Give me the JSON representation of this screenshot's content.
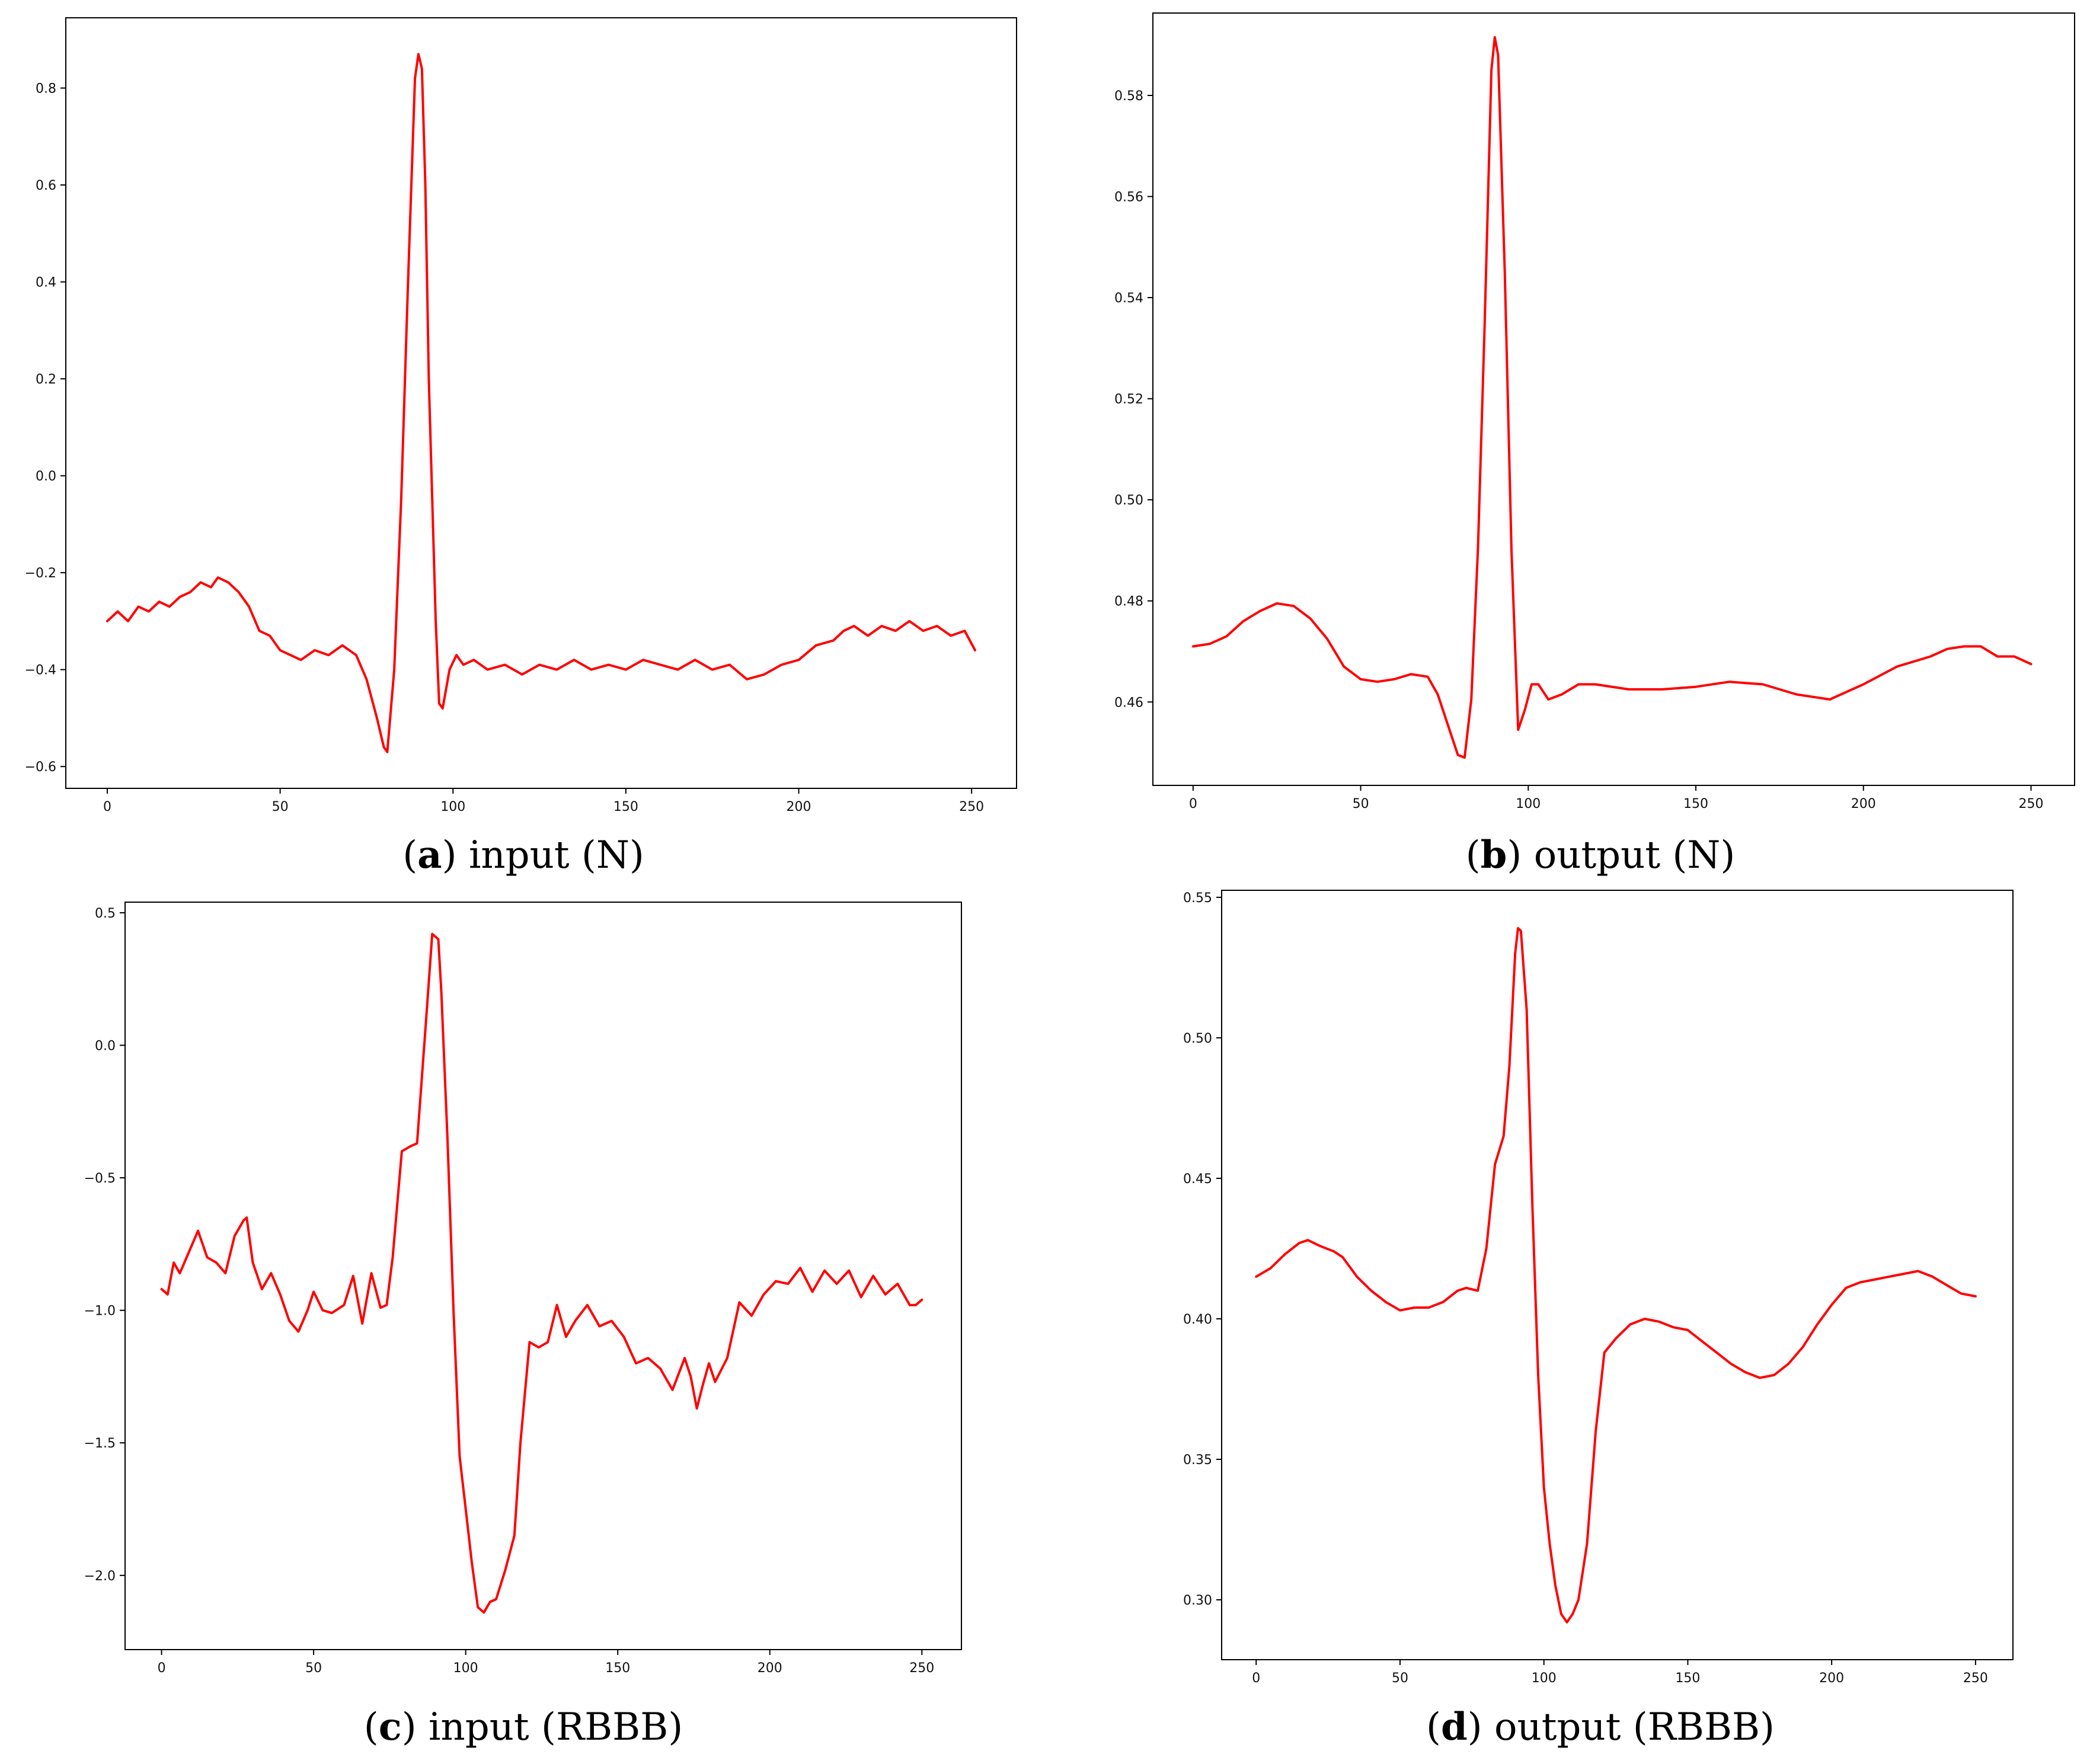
{
  "colors": {
    "line": "#ff0000",
    "axes": "#000000",
    "background": "#ffffff"
  },
  "chart_data": [
    {
      "type": "line",
      "caption_letter": "a",
      "caption_text": "input (N)",
      "xlim": [
        -12,
        263
      ],
      "ylim": [
        -0.645,
        0.945
      ],
      "xticks": [
        0,
        50,
        100,
        150,
        200,
        250
      ],
      "xtick_labels": [
        "0",
        "50",
        "100",
        "150",
        "200",
        "250"
      ],
      "yticks": [
        -0.6,
        -0.4,
        -0.2,
        0.0,
        0.2,
        0.4,
        0.6,
        0.8
      ],
      "ytick_labels": [
        "−0.6",
        "−0.4",
        "−0.2",
        "0.0",
        "0.2",
        "0.4",
        "0.6",
        "0.8"
      ],
      "series": [
        {
          "x": [
            0,
            3,
            6,
            9,
            12,
            15,
            18,
            21,
            24,
            27,
            30,
            32,
            35,
            38,
            41,
            44,
            47,
            50,
            53,
            56,
            60,
            64,
            68,
            70,
            72,
            75,
            78,
            80,
            81,
            83,
            85,
            87,
            89,
            90,
            91,
            92,
            93,
            95,
            96,
            97,
            99,
            101,
            103,
            106,
            110,
            115,
            120,
            125,
            130,
            135,
            140,
            145,
            150,
            155,
            160,
            165,
            170,
            175,
            180,
            185,
            190,
            195,
            200,
            205,
            210,
            213,
            216,
            220,
            224,
            228,
            232,
            236,
            240,
            244,
            248,
            251
          ],
          "values": [
            -0.3,
            -0.28,
            -0.3,
            -0.27,
            -0.28,
            -0.26,
            -0.27,
            -0.25,
            -0.24,
            -0.22,
            -0.23,
            -0.21,
            -0.22,
            -0.24,
            -0.27,
            -0.32,
            -0.33,
            -0.36,
            -0.37,
            -0.38,
            -0.36,
            -0.37,
            -0.35,
            -0.36,
            -0.37,
            -0.42,
            -0.5,
            -0.56,
            -0.57,
            -0.4,
            -0.05,
            0.4,
            0.82,
            0.87,
            0.84,
            0.6,
            0.2,
            -0.3,
            -0.47,
            -0.48,
            -0.4,
            -0.37,
            -0.39,
            -0.38,
            -0.4,
            -0.39,
            -0.41,
            -0.39,
            -0.4,
            -0.38,
            -0.4,
            -0.39,
            -0.4,
            -0.38,
            -0.39,
            -0.4,
            -0.38,
            -0.4,
            -0.39,
            -0.42,
            -0.41,
            -0.39,
            -0.38,
            -0.35,
            -0.34,
            -0.32,
            -0.31,
            -0.33,
            -0.31,
            -0.32,
            -0.3,
            -0.32,
            -0.31,
            -0.33,
            -0.32,
            -0.36
          ]
        }
      ]
    },
    {
      "type": "line",
      "caption_letter": "b",
      "caption_text": "output (N)",
      "xlim": [
        -12,
        263
      ],
      "ylim": [
        0.4435,
        0.5963
      ],
      "xticks": [
        0,
        50,
        100,
        150,
        200,
        250
      ],
      "xtick_labels": [
        "0",
        "50",
        "100",
        "150",
        "200",
        "250"
      ],
      "yticks": [
        0.46,
        0.48,
        0.5,
        0.52,
        0.54,
        0.56,
        0.58
      ],
      "ytick_labels": [
        "0.46",
        "0.48",
        "0.50",
        "0.52",
        "0.54",
        "0.56",
        "0.58"
      ],
      "series": [
        {
          "x": [
            0,
            5,
            10,
            15,
            20,
            25,
            30,
            35,
            40,
            45,
            50,
            55,
            60,
            65,
            70,
            73,
            76,
            79,
            81,
            83,
            85,
            87,
            89,
            90,
            91,
            93,
            95,
            97,
            99,
            101,
            103,
            106,
            110,
            115,
            120,
            130,
            140,
            150,
            160,
            170,
            180,
            190,
            195,
            200,
            210,
            220,
            225,
            230,
            235,
            240,
            245,
            250
          ],
          "values": [
            0.471,
            0.4715,
            0.473,
            0.476,
            0.478,
            0.4795,
            0.479,
            0.4765,
            0.4725,
            0.467,
            0.4645,
            0.464,
            0.4645,
            0.4655,
            0.465,
            0.4615,
            0.4555,
            0.4495,
            0.449,
            0.4605,
            0.4905,
            0.535,
            0.585,
            0.5915,
            0.588,
            0.545,
            0.49,
            0.4545,
            0.4585,
            0.4635,
            0.4635,
            0.4605,
            0.4615,
            0.4635,
            0.4635,
            0.4625,
            0.4625,
            0.463,
            0.464,
            0.4635,
            0.4615,
            0.4605,
            0.462,
            0.4635,
            0.467,
            0.469,
            0.4705,
            0.471,
            0.471,
            0.469,
            0.469,
            0.4675
          ]
        }
      ]
    },
    {
      "type": "line",
      "caption_letter": "c",
      "caption_text": "input (RBBB)",
      "xlim": [
        -12,
        263
      ],
      "ylim": [
        -2.28,
        0.54
      ],
      "xticks": [
        0,
        50,
        100,
        150,
        200,
        250
      ],
      "xtick_labels": [
        "0",
        "50",
        "100",
        "150",
        "200",
        "250"
      ],
      "yticks": [
        -2.0,
        -1.5,
        -1.0,
        -0.5,
        0.0,
        0.5
      ],
      "ytick_labels": [
        "−2.0",
        "−1.5",
        "−1.0",
        "−0.5",
        "0.0",
        "0.5"
      ],
      "series": [
        {
          "x": [
            0,
            2,
            4,
            6,
            9,
            12,
            15,
            18,
            21,
            24,
            27,
            28,
            30,
            33,
            36,
            39,
            42,
            45,
            48,
            50,
            53,
            56,
            60,
            63,
            66,
            69,
            72,
            74,
            76,
            79,
            82,
            84,
            87,
            89,
            91,
            92,
            94,
            96,
            98,
            100,
            102,
            104,
            106,
            108,
            110,
            113,
            116,
            118,
            121,
            124,
            127,
            130,
            133,
            136,
            140,
            144,
            148,
            152,
            156,
            160,
            164,
            168,
            172,
            174,
            176,
            178,
            180,
            182,
            186,
            190,
            194,
            198,
            202,
            206,
            210,
            214,
            218,
            222,
            226,
            230,
            234,
            238,
            242,
            246,
            248,
            250
          ],
          "values": [
            -0.92,
            -0.94,
            -0.82,
            -0.86,
            -0.78,
            -0.7,
            -0.8,
            -0.82,
            -0.86,
            -0.72,
            -0.66,
            -0.65,
            -0.82,
            -0.92,
            -0.86,
            -0.94,
            -1.04,
            -1.08,
            -1.0,
            -0.93,
            -1.0,
            -1.01,
            -0.98,
            -0.87,
            -1.05,
            -0.86,
            -0.99,
            -0.98,
            -0.8,
            -0.4,
            -0.38,
            -0.37,
            0.1,
            0.42,
            0.4,
            0.2,
            -0.35,
            -1.0,
            -1.55,
            -1.75,
            -1.95,
            -2.12,
            -2.14,
            -2.1,
            -2.09,
            -1.98,
            -1.85,
            -1.5,
            -1.12,
            -1.14,
            -1.12,
            -0.98,
            -1.1,
            -1.04,
            -0.98,
            -1.06,
            -1.04,
            -1.1,
            -1.2,
            -1.18,
            -1.22,
            -1.3,
            -1.18,
            -1.25,
            -1.37,
            -1.28,
            -1.2,
            -1.27,
            -1.18,
            -0.97,
            -1.02,
            -0.94,
            -0.89,
            -0.9,
            -0.84,
            -0.93,
            -0.85,
            -0.9,
            -0.85,
            -0.95,
            -0.87,
            -0.94,
            -0.9,
            -0.98,
            -0.98,
            -0.96
          ]
        }
      ]
    },
    {
      "type": "line",
      "caption_letter": "d",
      "caption_text": "output (RBBB)",
      "xlim": [
        -12,
        263
      ],
      "ylim": [
        0.2787,
        0.5525
      ],
      "xticks": [
        0,
        50,
        100,
        150,
        200,
        250
      ],
      "xtick_labels": [
        "0",
        "50",
        "100",
        "150",
        "200",
        "250"
      ],
      "yticks": [
        0.3,
        0.35,
        0.4,
        0.45,
        0.5,
        0.55
      ],
      "ytick_labels": [
        "0.30",
        "0.35",
        "0.40",
        "0.45",
        "0.50",
        "0.55"
      ],
      "series": [
        {
          "x": [
            0,
            5,
            10,
            15,
            18,
            22,
            27,
            30,
            35,
            40,
            45,
            50,
            55,
            60,
            65,
            70,
            73,
            77,
            80,
            83,
            86,
            88,
            90,
            91,
            92,
            94,
            96,
            98,
            100,
            102,
            104,
            106,
            108,
            110,
            112,
            115,
            118,
            121,
            125,
            130,
            135,
            140,
            145,
            150,
            155,
            160,
            165,
            170,
            175,
            180,
            185,
            190,
            195,
            200,
            205,
            210,
            215,
            220,
            225,
            230,
            235,
            240,
            245,
            250
          ],
          "values": [
            0.415,
            0.418,
            0.423,
            0.427,
            0.428,
            0.426,
            0.424,
            0.422,
            0.415,
            0.41,
            0.406,
            0.403,
            0.404,
            0.404,
            0.406,
            0.41,
            0.411,
            0.41,
            0.425,
            0.455,
            0.465,
            0.49,
            0.53,
            0.539,
            0.538,
            0.51,
            0.44,
            0.38,
            0.34,
            0.32,
            0.305,
            0.295,
            0.292,
            0.295,
            0.3,
            0.32,
            0.36,
            0.388,
            0.393,
            0.398,
            0.4,
            0.399,
            0.397,
            0.396,
            0.392,
            0.388,
            0.384,
            0.381,
            0.379,
            0.38,
            0.384,
            0.39,
            0.398,
            0.405,
            0.411,
            0.413,
            0.414,
            0.415,
            0.416,
            0.417,
            0.415,
            0.412,
            0.409,
            0.408
          ]
        }
      ]
    }
  ]
}
